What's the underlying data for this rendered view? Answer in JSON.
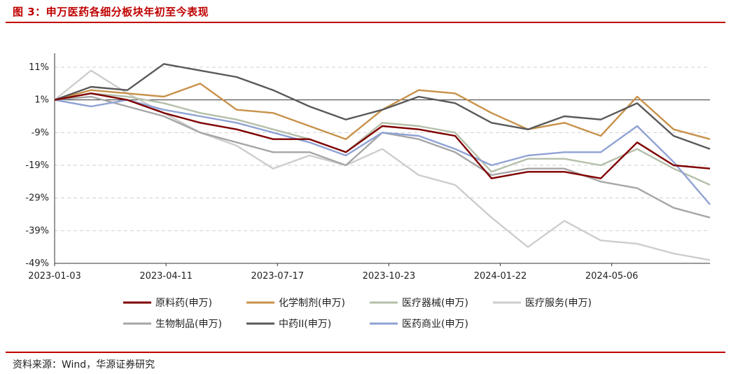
{
  "title": "图 3：申万医药各细分板块年初至今表现",
  "source": "资料来源：Wind，华源证券研究",
  "chart_data": {
    "type": "line",
    "ylim": [
      -49,
      14
    ],
    "yticks": [
      11,
      1,
      -9,
      -19,
      -29,
      -39,
      -49
    ],
    "ytick_labels": [
      "11%",
      "1%",
      "-9%",
      "-19%",
      "-29%",
      "-39%",
      "-49%"
    ],
    "gridlines": "horizontal dashed",
    "reference_line": 1,
    "xtick_labels": [
      "2023-01-03",
      "2023-04-11",
      "2023-07-17",
      "2023-10-23",
      "2024-01-22",
      "2024-05-06"
    ],
    "x": [
      "2023-01",
      "2023-02",
      "2023-03",
      "2023-04",
      "2023-05",
      "2023-06",
      "2023-07",
      "2023-08",
      "2023-09",
      "2023-10",
      "2023-11",
      "2023-12",
      "2024-01",
      "2024-02",
      "2024-03",
      "2024-04",
      "2024-05",
      "2024-06",
      "2024-07"
    ],
    "legend_position": "bottom",
    "series": [
      {
        "name": "原料药(申万)",
        "color": "#7f0000",
        "values": [
          1,
          3,
          1,
          -3,
          -6,
          -8,
          -11,
          -11,
          -15,
          -7,
          -8,
          -10,
          -23,
          -21,
          -21,
          -23,
          -12,
          -19,
          -20
        ]
      },
      {
        "name": "化学制剂(申万)",
        "color": "#c8914a",
        "values": [
          1,
          4,
          3,
          2,
          6,
          -2,
          -3,
          -7,
          -11,
          -2,
          4,
          3,
          -3,
          -8,
          -6,
          -10,
          2,
          -8,
          -11
        ]
      },
      {
        "name": "医疗器械(申万)",
        "color": "#b4bfa9",
        "values": [
          1,
          3,
          2,
          0,
          -3,
          -5,
          -8,
          -11,
          -15,
          -6,
          -7,
          -9,
          -21,
          -17,
          -17,
          -19,
          -14,
          -20,
          -25
        ]
      },
      {
        "name": "医疗服务(申万)",
        "color": "#cdcdcd",
        "values": [
          1,
          10,
          3,
          -3,
          -9,
          -13,
          -20,
          -16,
          -19,
          -14,
          -22,
          -25,
          -35,
          -44,
          -36,
          -42,
          -43,
          -46,
          -48
        ]
      },
      {
        "name": "生物制品(申万)",
        "color": "#a6a6a6",
        "values": [
          1,
          2,
          -1,
          -4,
          -9,
          -12,
          -15,
          -15,
          -19,
          -9,
          -11,
          -15,
          -22,
          -20,
          -20,
          -24,
          -26,
          -32,
          -35
        ]
      },
      {
        "name": "中药II(申万)",
        "color": "#595959",
        "values": [
          1,
          5,
          4,
          12,
          10,
          8,
          4,
          -1,
          -5,
          -2,
          2,
          0,
          -6,
          -8,
          -4,
          -5,
          0,
          -10,
          -14
        ]
      },
      {
        "name": "医药商业(申万)",
        "color": "#8fa2d4",
        "values": [
          1,
          -1,
          1,
          -2,
          -4,
          -6,
          -9,
          -12,
          -16,
          -9,
          -10,
          -14,
          -19,
          -16,
          -15,
          -15,
          -7,
          -18,
          -31
        ]
      }
    ]
  }
}
